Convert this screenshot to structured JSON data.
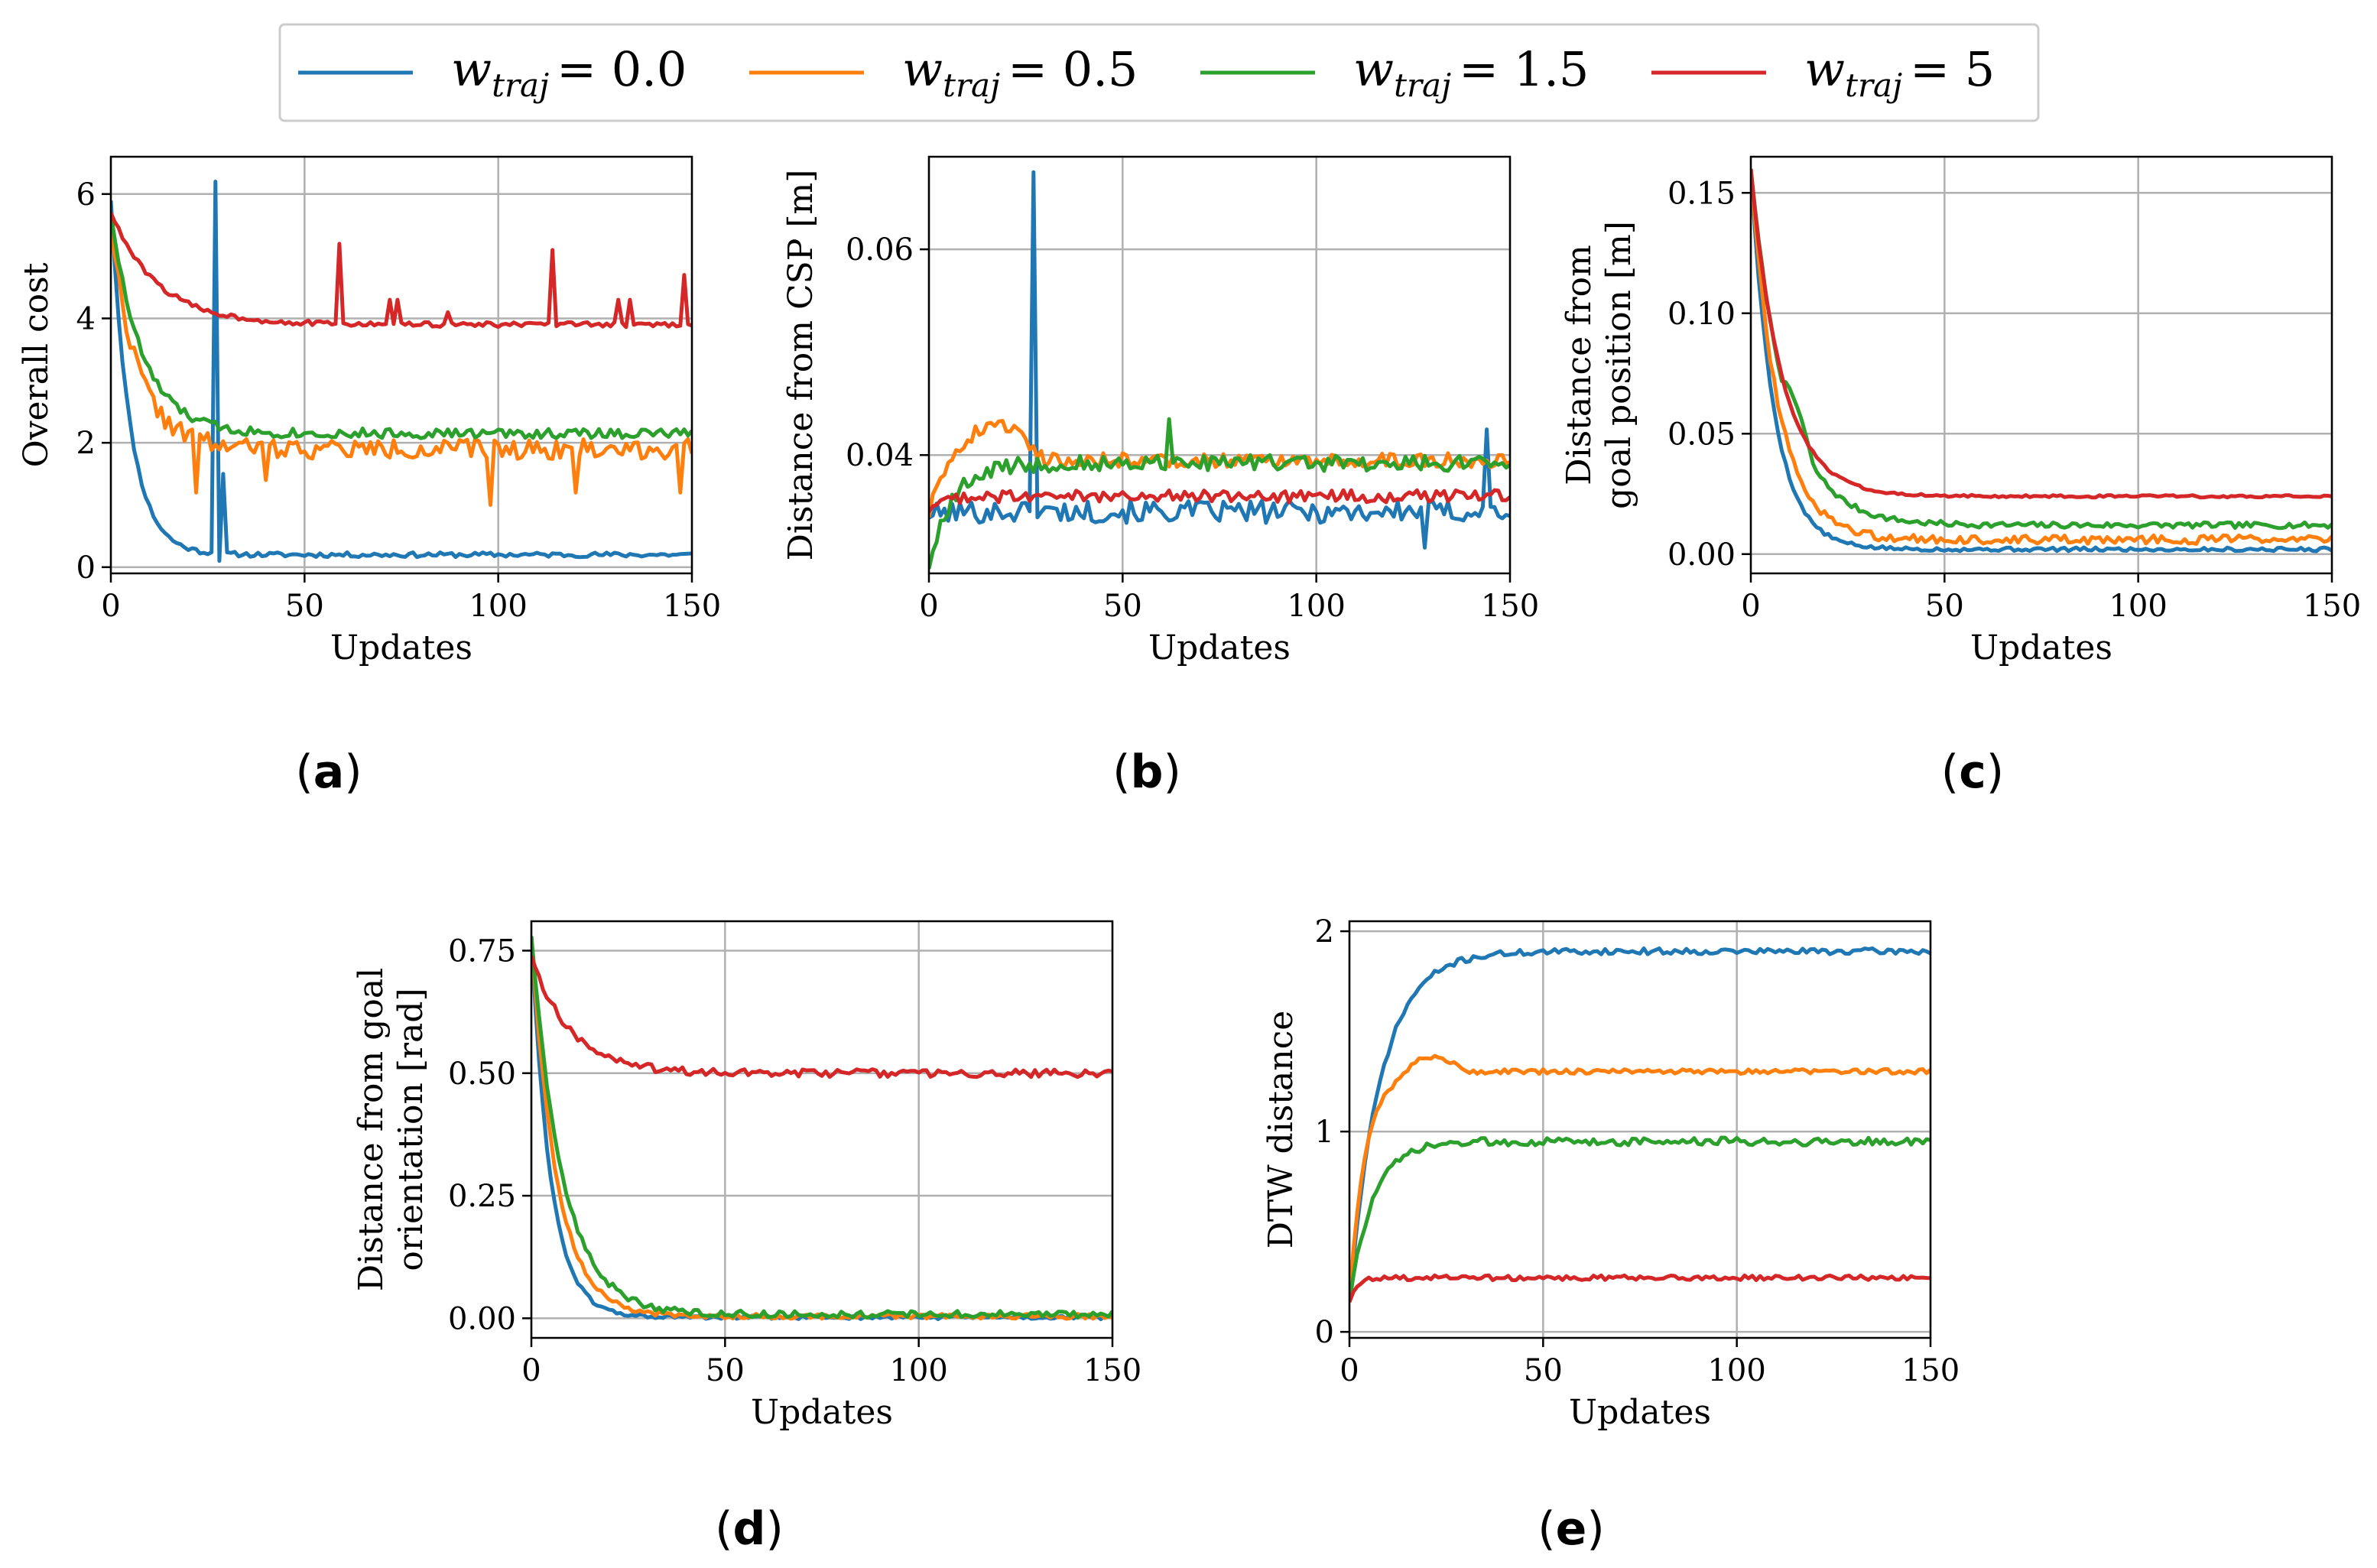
{
  "legend": {
    "items": [
      {
        "label": "w_traj = 0.0",
        "sub": "traj",
        "value": "= 0.0",
        "color": "#1f77b4"
      },
      {
        "label": "w_traj = 0.5",
        "sub": "traj",
        "value": "= 0.5",
        "color": "#ff7f0e"
      },
      {
        "label": "w_traj = 1.5",
        "sub": "traj",
        "value": "= 1.5",
        "color": "#2ca02c"
      },
      {
        "label": "w_traj = 5",
        "sub": "traj",
        "value": "= 5",
        "color": "#d62728"
      }
    ]
  },
  "chart_data": [
    {
      "id": "a",
      "panel_label": "a",
      "type": "line",
      "title": "",
      "xlabel": "Updates",
      "ylabel": [
        "Overall cost"
      ],
      "xlim": [
        0,
        150
      ],
      "ylim": [
        -0.1,
        6.6
      ],
      "xticks": [
        0,
        50,
        100,
        150
      ],
      "xticklabels": [
        "0",
        "50",
        "100",
        "150"
      ],
      "yticks": [
        0,
        2,
        4,
        6
      ],
      "yticklabels": [
        "0",
        "2",
        "4",
        "6"
      ],
      "grid": true,
      "series": [
        {
          "name": "w_traj = 0.0",
          "start": 5.9,
          "end": 0.2,
          "tau": 5,
          "noise": 0.04,
          "seed": 11,
          "spikes": [
            [
              27,
              6.2
            ]
          ],
          "dips": [
            [
              27.8,
              0.1
            ],
            [
              28.5,
              1.5
            ]
          ]
        },
        {
          "name": "w_traj = 0.5",
          "start": 5.5,
          "end": 1.9,
          "tau": 7,
          "noise": 0.16,
          "seed": 22,
          "dips": [
            [
              22,
              1.2
            ],
            [
              40,
              1.4
            ],
            [
              98,
              1.0
            ],
            [
              120,
              1.2
            ],
            [
              147,
              1.2
            ]
          ]
        },
        {
          "name": "w_traj = 1.5",
          "start": 5.7,
          "end": 2.15,
          "tau": 8,
          "noise": 0.08,
          "seed": 33
        },
        {
          "name": "w_traj = 5",
          "start": 5.7,
          "end": 3.9,
          "tau": 12,
          "noise": 0.04,
          "seed": 44,
          "spikes": [
            [
              59,
              5.2
            ],
            [
              72,
              4.3
            ],
            [
              74,
              4.3
            ],
            [
              87,
              4.1
            ],
            [
              114,
              5.1
            ],
            [
              131,
              4.3
            ],
            [
              134,
              4.3
            ],
            [
              148,
              4.7
            ]
          ]
        }
      ]
    },
    {
      "id": "b",
      "panel_label": "b",
      "type": "line",
      "title": "",
      "xlabel": "Updates",
      "ylabel": [
        "Distance from CSP [m]"
      ],
      "xlim": [
        0,
        150
      ],
      "ylim": [
        0.0285,
        0.069
      ],
      "xticks": [
        0,
        50,
        100,
        150
      ],
      "xticklabels": [
        "0",
        "50",
        "100",
        "150"
      ],
      "yticks": [
        0.04,
        0.06
      ],
      "yticklabels": [
        "0.04",
        "0.06"
      ],
      "grid": true,
      "series": [
        {
          "name": "w_traj = 0.0",
          "start": 0.034,
          "end": 0.0345,
          "tau": 3,
          "noise": 0.0011,
          "seed": 101,
          "spikes": [
            [
              27,
              0.0675
            ]
          ],
          "dips": [
            [
              128,
              0.031
            ],
            [
              144,
              0.0425
            ]
          ]
        },
        {
          "name": "w_traj = 0.5",
          "start": 0.034,
          "end": 0.0395,
          "tau": 2,
          "noise": 0.0007,
          "seed": 202,
          "bumps": [
            [
              5,
              30,
              0.0035
            ]
          ]
        },
        {
          "name": "w_traj = 1.5",
          "start": 0.029,
          "end": 0.0392,
          "tau": 6,
          "noise": 0.0008,
          "seed": 303,
          "spikes": [
            [
              62,
              0.0435
            ]
          ]
        },
        {
          "name": "w_traj = 5",
          "start": 0.0345,
          "end": 0.036,
          "tau": 3,
          "noise": 0.0006,
          "seed": 404
        }
      ]
    },
    {
      "id": "c",
      "panel_label": "c",
      "type": "line",
      "title": "",
      "xlabel": "Updates",
      "ylabel": [
        "Distance from",
        "goal position [m]"
      ],
      "xlim": [
        0,
        150
      ],
      "ylim": [
        -0.008,
        0.165
      ],
      "xticks": [
        0,
        50,
        100,
        150
      ],
      "xticklabels": [
        "0",
        "50",
        "100",
        "150"
      ],
      "yticks": [
        0.0,
        0.05,
        0.1,
        0.15
      ],
      "yticklabels": [
        "0.00",
        "0.05",
        "0.10",
        "0.15"
      ],
      "grid": true,
      "series": [
        {
          "name": "w_traj = 0.0",
          "start": 0.16,
          "end": 0.002,
          "tau": 6,
          "noise": 0.0008,
          "seed": 5
        },
        {
          "name": "w_traj = 0.5",
          "start": 0.16,
          "end": 0.006,
          "tau": 7,
          "noise": 0.0018,
          "seed": 6
        },
        {
          "name": "w_traj = 1.5",
          "start": 0.16,
          "end": 0.012,
          "tau": 9,
          "noise": 0.0012,
          "seed": 7,
          "bumps": [
            [
              8,
              16,
              0.01
            ]
          ]
        },
        {
          "name": "w_traj = 5",
          "start": 0.16,
          "end": 0.024,
          "tau": 8,
          "noise": 0.0005,
          "seed": 8
        }
      ]
    },
    {
      "id": "d",
      "panel_label": "d",
      "type": "line",
      "title": "",
      "xlabel": "Updates",
      "ylabel": [
        "Distance from goal",
        "orientation [rad]"
      ],
      "xlim": [
        0,
        150
      ],
      "ylim": [
        -0.04,
        0.81
      ],
      "xticks": [
        0,
        50,
        100,
        150
      ],
      "xticklabels": [
        "0",
        "50",
        "100",
        "150"
      ],
      "yticks": [
        0.0,
        0.25,
        0.5,
        0.75
      ],
      "yticklabels": [
        "0.00",
        "0.25",
        "0.50",
        "0.75"
      ],
      "grid": true,
      "series": [
        {
          "name": "w_traj = 0.0",
          "start": 0.78,
          "end": 0.002,
          "tau": 5,
          "noise": 0.004,
          "seed": 61
        },
        {
          "name": "w_traj = 0.5",
          "start": 0.78,
          "end": 0.004,
          "tau": 6.5,
          "noise": 0.005,
          "seed": 62
        },
        {
          "name": "w_traj = 1.5",
          "start": 0.78,
          "end": 0.008,
          "tau": 8,
          "noise": 0.007,
          "seed": 63
        },
        {
          "name": "w_traj = 5",
          "start": 0.74,
          "end": 0.5,
          "tau": 10,
          "noise": 0.008,
          "seed": 64
        }
      ]
    },
    {
      "id": "e",
      "panel_label": "e",
      "type": "line",
      "title": "",
      "xlabel": "Updates",
      "ylabel": [
        "DTW distance"
      ],
      "xlim": [
        0,
        150
      ],
      "ylim": [
        -0.03,
        2.05
      ],
      "xticks": [
        0,
        50,
        100,
        150
      ],
      "xticklabels": [
        "0",
        "50",
        "100",
        "150"
      ],
      "yticks": [
        0,
        1,
        2
      ],
      "yticklabels": [
        "0",
        "1",
        "2"
      ],
      "grid": true,
      "series": [
        {
          "name": "w_traj = 0.0",
          "start": 0.15,
          "end": 1.9,
          "tau": -8,
          "noise": 0.015,
          "seed": 71
        },
        {
          "name": "w_traj = 0.5",
          "start": 0.15,
          "end": 1.3,
          "tau": -4,
          "noise": 0.012,
          "seed": 72,
          "bumps": [
            [
              12,
              30,
              0.08
            ]
          ]
        },
        {
          "name": "w_traj = 1.5",
          "start": 0.15,
          "end": 0.95,
          "tau": -6,
          "noise": 0.02,
          "seed": 73
        },
        {
          "name": "w_traj = 5",
          "start": 0.15,
          "end": 0.27,
          "tau": -2,
          "noise": 0.012,
          "seed": 74
        }
      ]
    }
  ]
}
